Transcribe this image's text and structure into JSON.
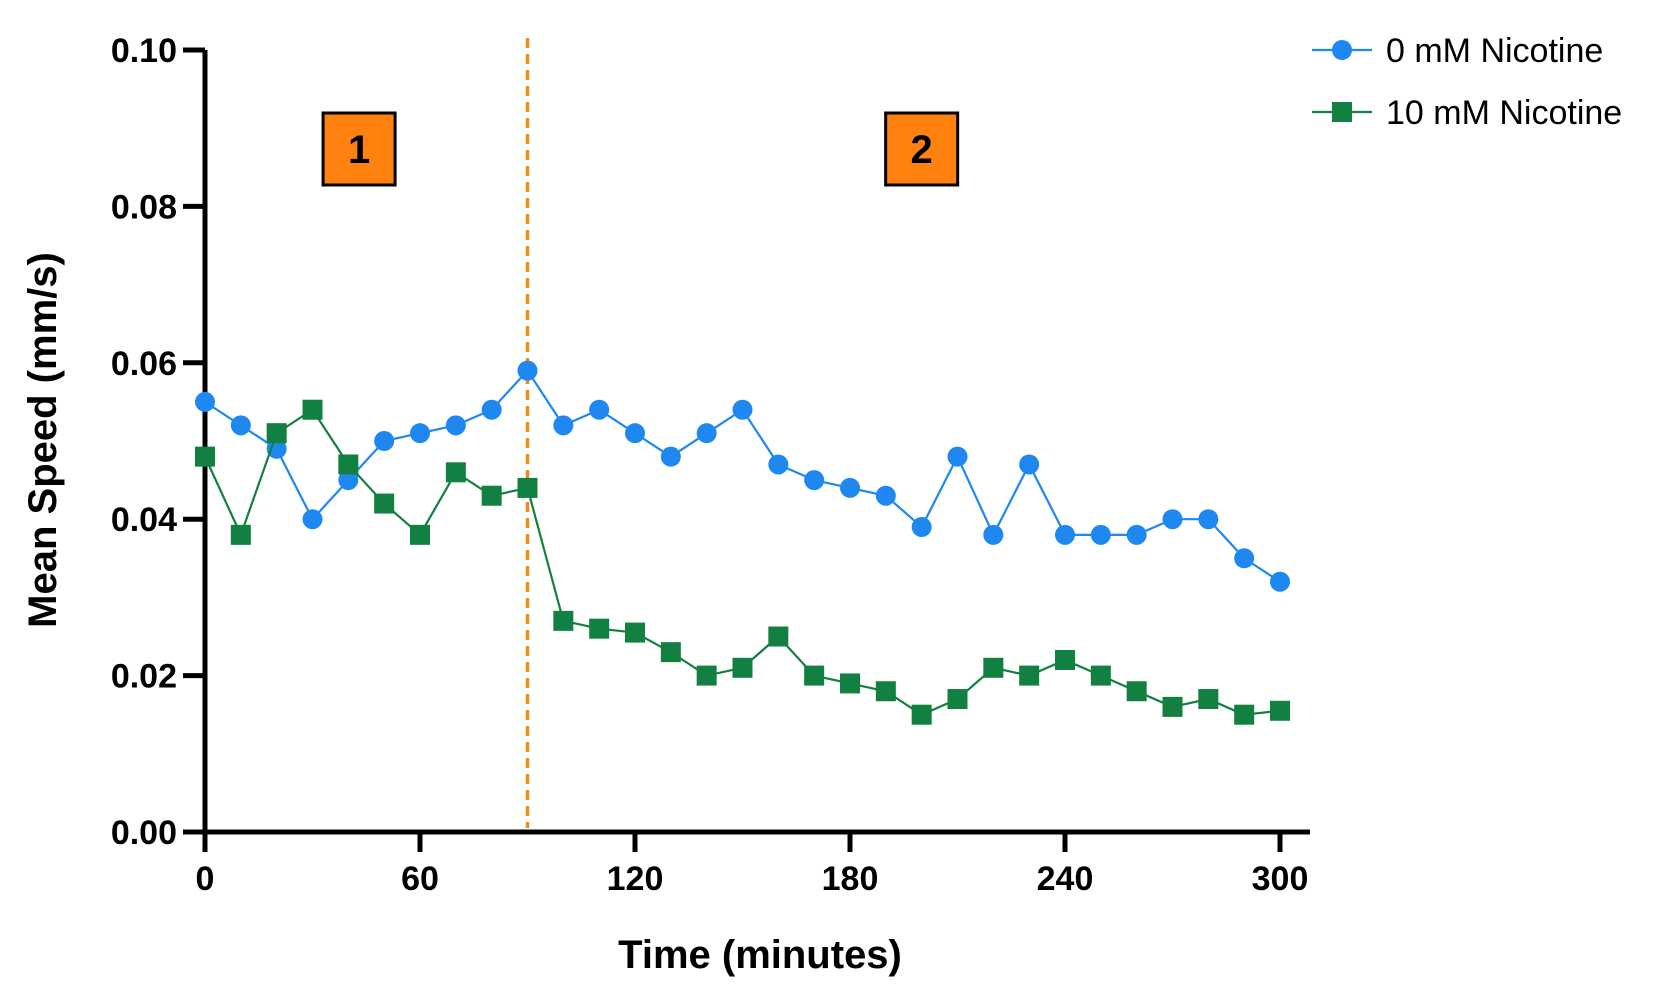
{
  "chart_data": {
    "type": "line",
    "title": "",
    "xlabel": "Time (minutes)",
    "ylabel": "Mean Speed (mm/s)",
    "xlim": [
      0,
      300
    ],
    "ylim": [
      0,
      0.1
    ],
    "x_ticks": [
      0,
      60,
      120,
      180,
      240,
      300
    ],
    "x_tick_labels": [
      "0",
      "60",
      "120",
      "180",
      "240",
      "300"
    ],
    "y_ticks": [
      0,
      0.02,
      0.04,
      0.06,
      0.08,
      0.1
    ],
    "y_tick_labels": [
      "0.00",
      "0.02",
      "0.04",
      "0.06",
      "0.08",
      "0.10"
    ],
    "grid": false,
    "legend_position": "top-right",
    "x": [
      0,
      10,
      20,
      30,
      40,
      50,
      60,
      70,
      80,
      90,
      100,
      110,
      120,
      130,
      140,
      150,
      160,
      170,
      180,
      190,
      200,
      210,
      220,
      230,
      240,
      250,
      260,
      270,
      280,
      290,
      300
    ],
    "series": [
      {
        "name": "0 mM Nicotine",
        "color": "#1e88f0",
        "marker": "circle",
        "values": [
          0.055,
          0.052,
          0.049,
          0.04,
          0.045,
          0.05,
          0.051,
          0.052,
          0.054,
          0.059,
          0.052,
          0.054,
          0.051,
          0.048,
          0.051,
          0.054,
          0.047,
          0.045,
          0.044,
          0.043,
          0.039,
          0.048,
          0.038,
          0.047,
          0.038,
          0.038,
          0.038,
          0.04,
          0.04,
          0.035,
          0.032
        ]
      },
      {
        "name": "10 mM Nicotine",
        "color": "#118040",
        "marker": "square",
        "values": [
          0.048,
          0.038,
          0.051,
          0.054,
          0.047,
          0.042,
          0.038,
          0.046,
          0.043,
          0.044,
          0.027,
          0.026,
          0.0255,
          0.023,
          0.02,
          0.021,
          0.025,
          0.02,
          0.019,
          0.018,
          0.015,
          0.017,
          0.021,
          0.02,
          0.022,
          0.02,
          0.018,
          0.016,
          0.017,
          0.015,
          0.0155
        ]
      }
    ],
    "annotations": {
      "divider_x": 90,
      "divider_color": "#f08a1e",
      "phases": [
        {
          "label": "1",
          "x": 43
        },
        {
          "label": "2",
          "x": 200
        }
      ],
      "phase_box_color": "#ff8210"
    }
  }
}
